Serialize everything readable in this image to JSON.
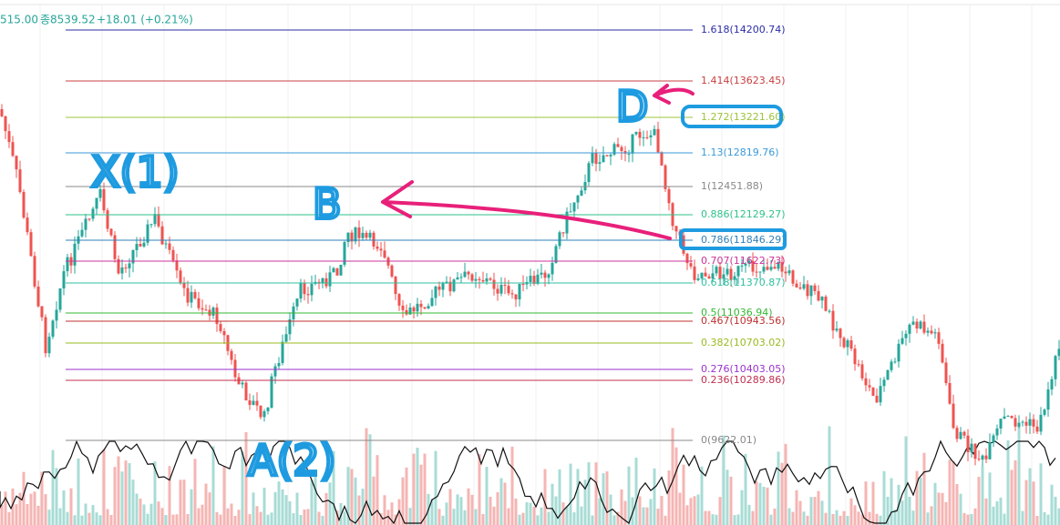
{
  "header": {
    "parts": [
      "515.00",
      "종8539.52",
      "+18.01 (+0.21%)"
    ]
  },
  "fib_levels": [
    {
      "label": "1.618(14200.74)",
      "color": "#2c2ca8"
    },
    {
      "label": "1.414(13623.45)",
      "color": "#c94040"
    },
    {
      "label": "1.272(13221.60)",
      "color": "#9cc43c"
    },
    {
      "label": "1.13(12819.76)",
      "color": "#3a9ad9"
    },
    {
      "label": "1(12451.88)",
      "color": "#888888"
    },
    {
      "label": "0.886(12129.27)",
      "color": "#2ec28a"
    },
    {
      "label": "0.786(11846.29)",
      "color": "#2f80b8"
    },
    {
      "label": "0.707(11622.73)",
      "color": "#cc3399"
    },
    {
      "label": "0.618(11370.87)",
      "color": "#2fbf9f"
    },
    {
      "label": "0.5(11036.94)",
      "color": "#33b833"
    },
    {
      "label": "0.467(10943.56)",
      "color": "#c03030"
    },
    {
      "label": "0.382(10703.02)",
      "color": "#99bb22"
    },
    {
      "label": "0.276(10403.05)",
      "color": "#9933cc"
    },
    {
      "label": "0.236(10289.86)",
      "color": "#c03050"
    },
    {
      "label": "0(9622.01)",
      "color": "#888888"
    }
  ],
  "annotations": {
    "x": "X(1)",
    "a": "A(2)",
    "b": "B",
    "d": "D"
  }
}
